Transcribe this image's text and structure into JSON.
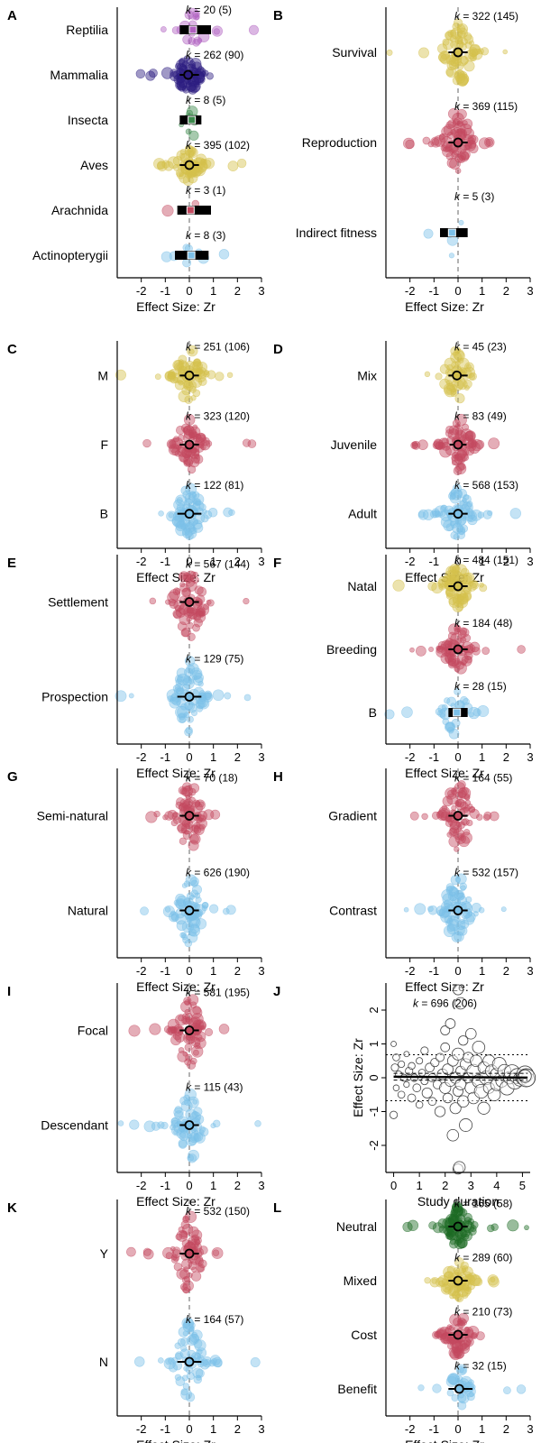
{
  "palette": {
    "yellow": "#d4c04c",
    "red": "#c44a60",
    "blue": "#7cc0e8",
    "purple": "#b060c0",
    "navy": "#2c1c80",
    "green": "#3c8a4c",
    "black": "#000000",
    "darkgreen": "#1c6a24"
  },
  "chart_data": [
    {
      "panel": "A",
      "type": "orchard",
      "xlabel": "Effect Size: Zr",
      "xlim": [
        -3,
        3
      ],
      "xticks": [
        -2,
        -1,
        0,
        1,
        2,
        3
      ],
      "categories": [
        {
          "name": "Actinopterygii",
          "estimate": 0.08,
          "ci": [
            -0.6,
            0.8
          ],
          "k": "8",
          "n": "3",
          "color": "blue"
        },
        {
          "name": "Arachnida",
          "estimate": 0.05,
          "ci": [
            -0.5,
            0.9
          ],
          "k": "3",
          "n": "1",
          "color": "red"
        },
        {
          "name": "Aves",
          "estimate": 0.0,
          "ci": [
            -0.4,
            0.4
          ],
          "k": "395",
          "n": "102",
          "color": "yellow"
        },
        {
          "name": "Insecta",
          "estimate": 0.1,
          "ci": [
            -0.4,
            0.5
          ],
          "k": "8",
          "n": "5",
          "color": "green"
        },
        {
          "name": "Mammalia",
          "estimate": -0.05,
          "ci": [
            -0.4,
            0.4
          ],
          "k": "262",
          "n": "90",
          "color": "navy"
        },
        {
          "name": "Reptilia",
          "estimate": 0.15,
          "ci": [
            -0.4,
            0.9
          ],
          "k": "20",
          "n": "5",
          "color": "purple"
        }
      ]
    },
    {
      "panel": "B",
      "type": "orchard",
      "xlabel": "Effect Size: Zr",
      "xlim": [
        -3,
        3
      ],
      "xticks": [
        -2,
        -1,
        0,
        1,
        2,
        3
      ],
      "categories": [
        {
          "name": "Indirect fitness",
          "estimate": -0.25,
          "ci": [
            -0.75,
            0.4
          ],
          "k": "5",
          "n": "3",
          "color": "blue"
        },
        {
          "name": "Reproduction",
          "estimate": 0.0,
          "ci": [
            -0.4,
            0.4
          ],
          "k": "369",
          "n": "115",
          "color": "red"
        },
        {
          "name": "Survival",
          "estimate": 0.0,
          "ci": [
            -0.4,
            0.4
          ],
          "k": "322",
          "n": "145",
          "color": "yellow"
        }
      ]
    },
    {
      "panel": "C",
      "type": "orchard",
      "xlabel": "Effect Size: Zr",
      "xlim": [
        -3,
        3
      ],
      "xticks": [
        -2,
        -1,
        0,
        1,
        2,
        3
      ],
      "categories": [
        {
          "name": "B",
          "estimate": 0.0,
          "ci": [
            -0.5,
            0.5
          ],
          "k": "122",
          "n": "81",
          "color": "blue"
        },
        {
          "name": "F",
          "estimate": 0.0,
          "ci": [
            -0.4,
            0.4
          ],
          "k": "323",
          "n": "120",
          "color": "red"
        },
        {
          "name": "M",
          "estimate": 0.0,
          "ci": [
            -0.4,
            0.4
          ],
          "k": "251",
          "n": "106",
          "color": "yellow"
        }
      ]
    },
    {
      "panel": "D",
      "type": "orchard",
      "xlabel": "Effect Size: Zr",
      "xlim": [
        -3,
        3
      ],
      "xticks": [
        -2,
        -1,
        0,
        1,
        2,
        3
      ],
      "categories": [
        {
          "name": "Adult",
          "estimate": 0.0,
          "ci": [
            -0.4,
            0.4
          ],
          "k": "568",
          "n": "153",
          "color": "blue"
        },
        {
          "name": "Juvenile",
          "estimate": 0.0,
          "ci": [
            -0.35,
            0.35
          ],
          "k": "83",
          "n": "49",
          "color": "red"
        },
        {
          "name": "Mix",
          "estimate": -0.05,
          "ci": [
            -0.4,
            0.4
          ],
          "k": "45",
          "n": "23",
          "color": "yellow"
        }
      ]
    },
    {
      "panel": "E",
      "type": "orchard",
      "xlabel": "Effect Size: Zr",
      "xlim": [
        -3,
        3
      ],
      "xticks": [
        -2,
        -1,
        0,
        1,
        2,
        3
      ],
      "categories": [
        {
          "name": "Prospection",
          "estimate": 0.0,
          "ci": [
            -0.5,
            0.5
          ],
          "k": "129",
          "n": "75",
          "color": "blue"
        },
        {
          "name": "Settlement",
          "estimate": 0.0,
          "ci": [
            -0.4,
            0.4
          ],
          "k": "567",
          "n": "144",
          "color": "red"
        }
      ]
    },
    {
      "panel": "F",
      "type": "orchard",
      "xlabel": "Effect Size: Zr",
      "xlim": [
        -3,
        3
      ],
      "xticks": [
        -2,
        -1,
        0,
        1,
        2,
        3
      ],
      "categories": [
        {
          "name": "B",
          "estimate": -0.05,
          "ci": [
            -0.4,
            0.4
          ],
          "k": "28",
          "n": "15",
          "color": "blue"
        },
        {
          "name": "Breeding",
          "estimate": 0.0,
          "ci": [
            -0.4,
            0.4
          ],
          "k": "184",
          "n": "48",
          "color": "red"
        },
        {
          "name": "Natal",
          "estimate": 0.0,
          "ci": [
            -0.4,
            0.4
          ],
          "k": "484",
          "n": "151",
          "color": "yellow"
        }
      ]
    },
    {
      "panel": "G",
      "type": "orchard",
      "xlabel": "Effect Size: Zr",
      "xlim": [
        -3,
        3
      ],
      "xticks": [
        -2,
        -1,
        0,
        1,
        2,
        3
      ],
      "categories": [
        {
          "name": "Natural",
          "estimate": 0.0,
          "ci": [
            -0.4,
            0.4
          ],
          "k": "626",
          "n": "190",
          "color": "blue"
        },
        {
          "name": "Semi-natural",
          "estimate": 0.0,
          "ci": [
            -0.4,
            0.4
          ],
          "k": "70",
          "n": "18",
          "color": "red"
        }
      ]
    },
    {
      "panel": "H",
      "type": "orchard",
      "xlabel": "Effect Size: Zr",
      "xlim": [
        -3,
        3
      ],
      "xticks": [
        -2,
        -1,
        0,
        1,
        2,
        3
      ],
      "categories": [
        {
          "name": "Contrast",
          "estimate": 0.0,
          "ci": [
            -0.4,
            0.4
          ],
          "k": "532",
          "n": "157",
          "color": "blue"
        },
        {
          "name": "Gradient",
          "estimate": 0.0,
          "ci": [
            -0.4,
            0.4
          ],
          "k": "164",
          "n": "55",
          "color": "red"
        }
      ]
    },
    {
      "panel": "I",
      "type": "orchard",
      "xlabel": "Effect Size: Zr",
      "xlim": [
        -3,
        3
      ],
      "xticks": [
        -2,
        -1,
        0,
        1,
        2,
        3
      ],
      "categories": [
        {
          "name": "Descendant",
          "estimate": 0.0,
          "ci": [
            -0.4,
            0.4
          ],
          "k": "115",
          "n": "43",
          "color": "blue"
        },
        {
          "name": "Focal",
          "estimate": 0.0,
          "ci": [
            -0.4,
            0.4
          ],
          "k": "581",
          "n": "195",
          "color": "red"
        }
      ]
    },
    {
      "panel": "J",
      "type": "scatter",
      "xlabel": "Study duration",
      "ylabel": "Effect Size: Zr",
      "xlim": [
        -0.3,
        5.3
      ],
      "ylim": [
        -2.8,
        2.8
      ],
      "xticks": [
        0,
        1,
        2,
        3,
        4,
        5
      ],
      "yticks": [
        -2,
        -1,
        0,
        1,
        2
      ],
      "annotation_k": "696",
      "annotation_n": "206",
      "regression": {
        "intercept": 0.03,
        "slope": -0.005
      },
      "prediction_interval": [
        -0.68,
        0.68
      ],
      "points": [
        [
          0.0,
          1.0
        ],
        [
          0.0,
          -1.1
        ],
        [
          0.05,
          0.3
        ],
        [
          0.1,
          -0.3
        ],
        [
          0.1,
          0.6
        ],
        [
          0.2,
          0.1
        ],
        [
          0.3,
          -0.5
        ],
        [
          0.3,
          0.4
        ],
        [
          0.4,
          0.0
        ],
        [
          0.5,
          -0.2
        ],
        [
          0.5,
          0.7
        ],
        [
          0.6,
          0.2
        ],
        [
          0.7,
          -0.6
        ],
        [
          0.7,
          0.35
        ],
        [
          0.8,
          0.0
        ],
        [
          0.9,
          -0.3
        ],
        [
          1.0,
          0.5
        ],
        [
          1.0,
          -0.8
        ],
        [
          1.1,
          0.15
        ],
        [
          1.2,
          -0.1
        ],
        [
          1.2,
          0.8
        ],
        [
          1.3,
          -0.45
        ],
        [
          1.4,
          0.3
        ],
        [
          1.5,
          0.0
        ],
        [
          1.5,
          -0.7
        ],
        [
          1.6,
          0.45
        ],
        [
          1.7,
          -0.2
        ],
        [
          1.8,
          0.6
        ],
        [
          1.8,
          -1.0
        ],
        [
          1.9,
          0.1
        ],
        [
          2.0,
          -0.3
        ],
        [
          2.0,
          0.9
        ],
        [
          2.0,
          1.4
        ],
        [
          2.1,
          -0.6
        ],
        [
          2.1,
          0.25
        ],
        [
          2.2,
          1.6
        ],
        [
          2.2,
          -0.1
        ],
        [
          2.3,
          0.5
        ],
        [
          2.3,
          -1.7
        ],
        [
          2.4,
          0.0
        ],
        [
          2.4,
          -0.9
        ],
        [
          2.5,
          0.7
        ],
        [
          2.5,
          -0.4
        ],
        [
          2.5,
          2.6
        ],
        [
          2.6,
          0.2
        ],
        [
          2.6,
          -0.2
        ],
        [
          2.6,
          2.2
        ],
        [
          2.7,
          1.1
        ],
        [
          2.7,
          -0.7
        ],
        [
          2.8,
          0.4
        ],
        [
          2.8,
          -1.4
        ],
        [
          2.9,
          0.0
        ],
        [
          2.9,
          0.6
        ],
        [
          3.0,
          -0.3
        ],
        [
          3.0,
          1.3
        ],
        [
          3.1,
          0.2
        ],
        [
          3.1,
          -0.6
        ],
        [
          3.2,
          0.5
        ],
        [
          3.3,
          -0.1
        ],
        [
          3.3,
          0.9
        ],
        [
          3.4,
          -0.4
        ],
        [
          3.5,
          0.3
        ],
        [
          3.5,
          -0.9
        ],
        [
          3.6,
          0.0
        ],
        [
          3.7,
          0.5
        ],
        [
          3.7,
          -0.3
        ],
        [
          3.8,
          0.2
        ],
        [
          3.9,
          -0.5
        ],
        [
          4.0,
          0.1
        ],
        [
          4.0,
          -0.2
        ],
        [
          4.1,
          0.4
        ],
        [
          4.2,
          -0.1
        ],
        [
          4.3,
          0.2
        ],
        [
          4.4,
          -0.3
        ],
        [
          4.5,
          0.0
        ],
        [
          4.6,
          0.15
        ],
        [
          4.7,
          -0.1
        ],
        [
          4.8,
          0.05
        ],
        [
          4.9,
          -0.05
        ],
        [
          5.0,
          0.0
        ],
        [
          5.1,
          0.1
        ],
        [
          5.2,
          -0.05
        ],
        [
          2.5,
          -2.7
        ],
        [
          2.55,
          -2.65
        ]
      ]
    },
    {
      "panel": "K",
      "type": "orchard",
      "xlabel": "Effect Size: Zr",
      "xlim": [
        -3,
        3
      ],
      "xticks": [
        -2,
        -1,
        0,
        1,
        2,
        3
      ],
      "categories": [
        {
          "name": "N",
          "estimate": 0.0,
          "ci": [
            -0.5,
            0.5
          ],
          "k": "164",
          "n": "57",
          "color": "blue"
        },
        {
          "name": "Y",
          "estimate": 0.0,
          "ci": [
            -0.4,
            0.4
          ],
          "k": "532",
          "n": "150",
          "color": "red"
        }
      ]
    },
    {
      "panel": "L",
      "type": "orchard",
      "xlabel": "Effect Size: Zr",
      "xlim": [
        -3,
        3
      ],
      "xticks": [
        -2,
        -1,
        0,
        1,
        2,
        3
      ],
      "categories": [
        {
          "name": "Benefit",
          "estimate": 0.05,
          "ci": [
            -0.4,
            0.6
          ],
          "k": "32",
          "n": "15",
          "color": "blue"
        },
        {
          "name": "Cost",
          "estimate": 0.0,
          "ci": [
            -0.4,
            0.4
          ],
          "k": "210",
          "n": "73",
          "color": "red"
        },
        {
          "name": "Mixed",
          "estimate": 0.0,
          "ci": [
            -0.4,
            0.4
          ],
          "k": "289",
          "n": "60",
          "color": "yellow"
        },
        {
          "name": "Neutral",
          "estimate": 0.0,
          "ci": [
            -0.4,
            0.4
          ],
          "k": "165",
          "n": "58",
          "color": "darkgreen"
        }
      ]
    }
  ]
}
